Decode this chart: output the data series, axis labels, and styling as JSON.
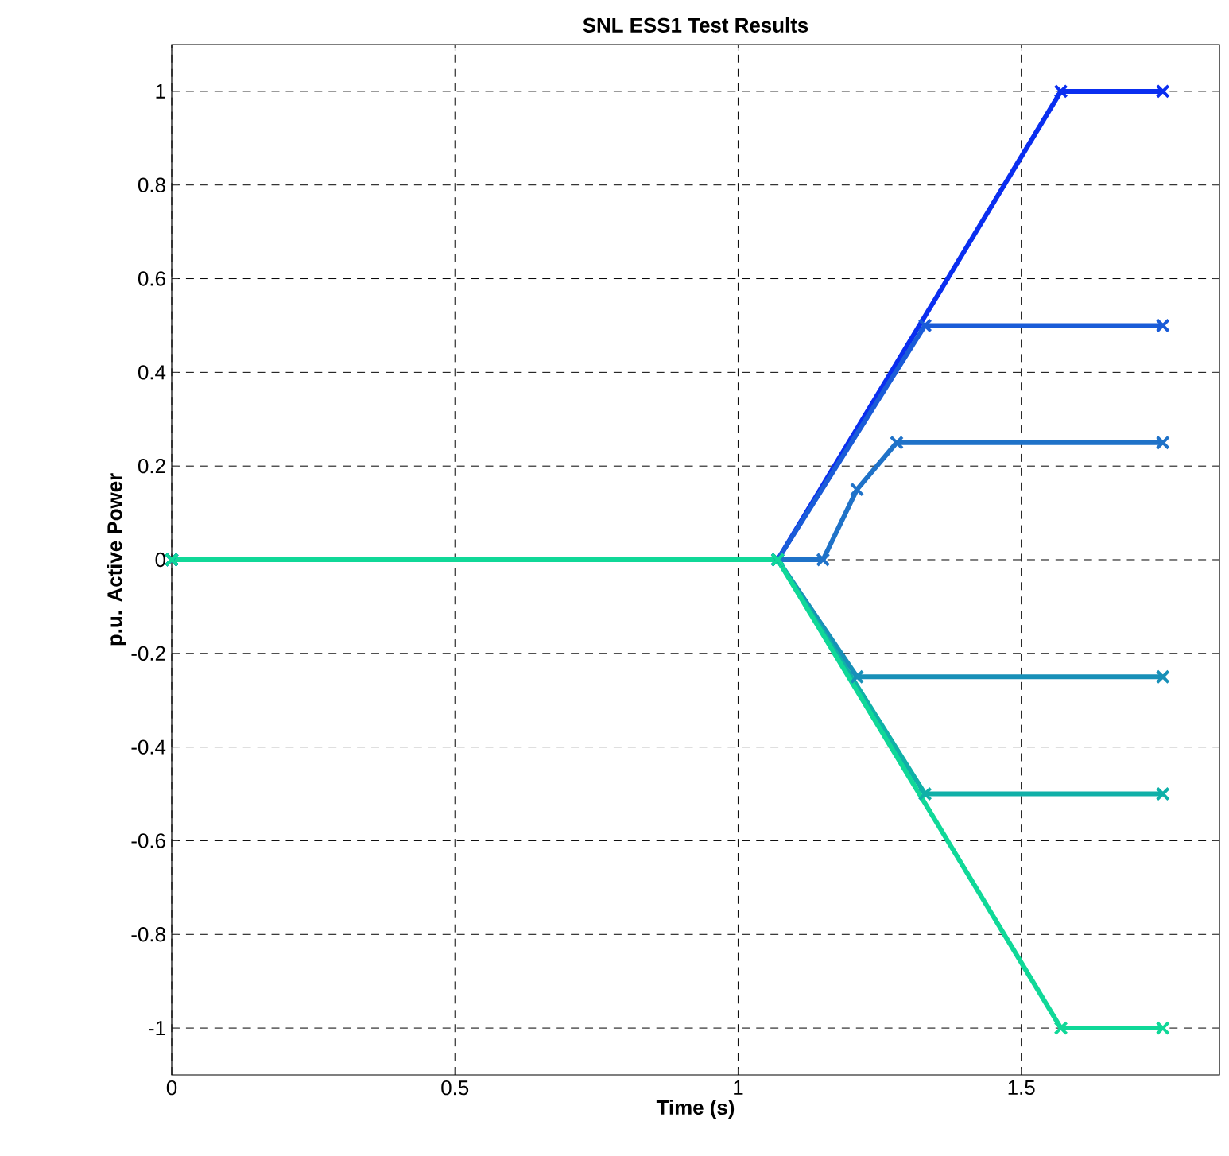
{
  "chart_data": {
    "type": "line",
    "title": "SNL ESS1 Test Results",
    "xlabel": "Time (s)",
    "ylabel": "p.u. Active Power",
    "xlim": [
      0,
      1.85
    ],
    "ylim": [
      -1.1,
      1.1
    ],
    "xticks": [
      0,
      0.5,
      1,
      1.5
    ],
    "yticks": [
      -1,
      -0.8,
      -0.6,
      -0.4,
      -0.2,
      0,
      0.2,
      0.4,
      0.6,
      0.8,
      1
    ],
    "grid": true,
    "marker": "cross",
    "line_style": "solid",
    "series": [
      {
        "color": "#0a2ef0",
        "x": [
          0,
          1.07,
          1.57,
          1.75
        ],
        "values": [
          0,
          0,
          1,
          1
        ]
      },
      {
        "color": "#1a5cd8",
        "x": [
          0,
          1.07,
          1.33,
          1.75
        ],
        "values": [
          0,
          0,
          0.5,
          0.5
        ]
      },
      {
        "color": "#1f72c8",
        "x": [
          0,
          1.15,
          1.21,
          1.28,
          1.75
        ],
        "values": [
          0,
          0,
          0.15,
          0.25,
          0.25
        ]
      },
      {
        "color": "#1890b8",
        "x": [
          0,
          1.07,
          1.21,
          1.75
        ],
        "values": [
          0,
          0,
          -0.25,
          -0.25
        ]
      },
      {
        "color": "#10b0a8",
        "x": [
          0,
          1.07,
          1.33,
          1.75
        ],
        "values": [
          0,
          0,
          -0.5,
          -0.5
        ]
      },
      {
        "color": "#10d898",
        "x": [
          0,
          1.07,
          1.57,
          1.75
        ],
        "values": [
          0,
          0,
          -1,
          -1
        ]
      }
    ]
  }
}
